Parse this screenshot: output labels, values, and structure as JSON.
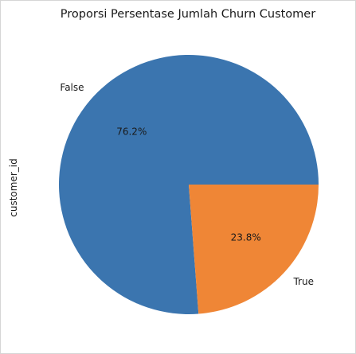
{
  "chart_data": {
    "type": "pie",
    "title": "Proporsi Persentase Jumlah Churn Customer",
    "ylabel": "customer_id",
    "categories": [
      "False",
      "True"
    ],
    "values": [
      76.2,
      23.8
    ],
    "pct_labels": [
      "76.2%",
      "23.8%"
    ],
    "colors": [
      "#3b75af",
      "#ef8636"
    ],
    "legend": "none",
    "grid": false
  }
}
